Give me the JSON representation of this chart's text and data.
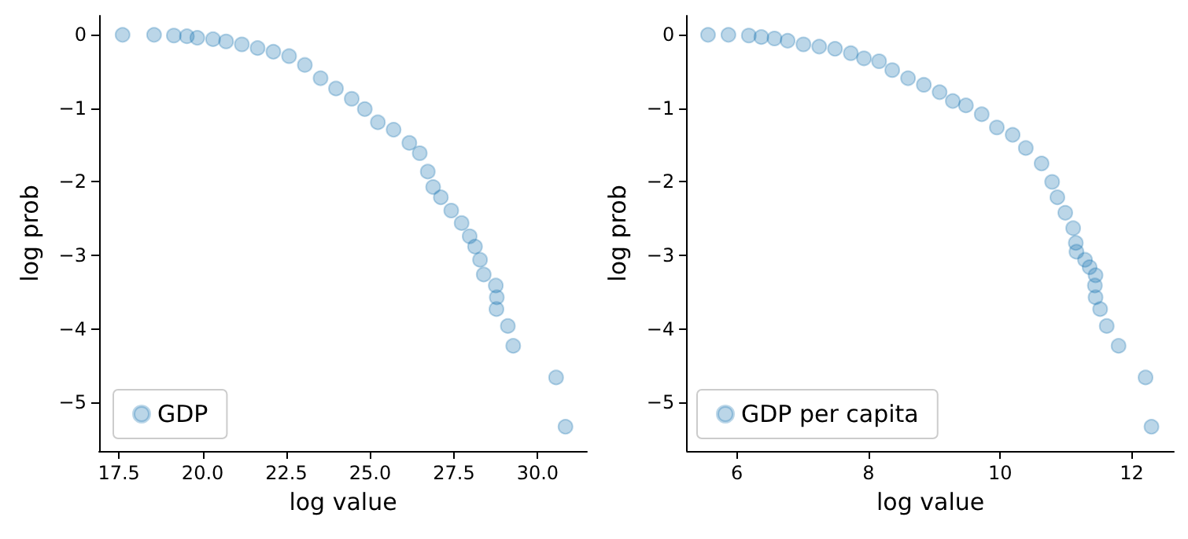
{
  "chart_data": [
    {
      "type": "scatter",
      "xlabel": "log value",
      "ylabel": "log prob",
      "legend": "bottom left",
      "grid": false,
      "marker": "circle",
      "xlim": [
        16.91,
        31.47
      ],
      "ylim": [
        -5.66,
        0.26
      ],
      "xticks": [
        17.5,
        {
          "value": 20,
          "label": "20.0"
        },
        22.5,
        {
          "value": 25,
          "label": "25.0"
        },
        27.5,
        {
          "value": 30,
          "label": "30.0"
        }
      ],
      "yticks": [
        {
          "value": -5,
          "label": "−5"
        },
        {
          "value": -4,
          "label": "−4"
        },
        {
          "value": -3,
          "label": "−3"
        },
        {
          "value": -2,
          "label": "−2"
        },
        {
          "value": -1,
          "label": "−1"
        },
        0
      ],
      "series": [
        {
          "name": "GDP",
          "color": "#1f77b4",
          "x": [
            17.61,
            18.55,
            19.14,
            19.53,
            19.84,
            20.31,
            20.7,
            21.17,
            21.64,
            22.11,
            22.58,
            23.05,
            23.52,
            23.98,
            24.45,
            24.84,
            25.23,
            25.7,
            26.17,
            26.48,
            26.72,
            26.88,
            27.11,
            27.42,
            27.73,
            27.97,
            28.13,
            28.28,
            28.39,
            28.75,
            28.78,
            28.77,
            29.11,
            29.27,
            30.55,
            30.83
          ],
          "values": [
            0,
            0,
            -0.01,
            -0.02,
            -0.04,
            -0.06,
            -0.09,
            -0.13,
            -0.18,
            -0.23,
            -0.29,
            -0.41,
            -0.59,
            -0.73,
            -0.87,
            -1.01,
            -1.19,
            -1.29,
            -1.47,
            -1.61,
            -1.86,
            -2.07,
            -2.21,
            -2.39,
            -2.56,
            -2.74,
            -2.88,
            -3.06,
            -3.26,
            -3.41,
            -3.57,
            -3.73,
            -3.96,
            -4.23,
            -4.66,
            -5.33
          ]
        }
      ]
    },
    {
      "type": "scatter",
      "xlabel": "log value",
      "ylabel": "log prob",
      "legend": "bottom left",
      "grid": false,
      "marker": "circle",
      "xlim": [
        5.24,
        12.64
      ],
      "ylim": [
        -5.66,
        0.26
      ],
      "xticks": [
        6,
        8,
        10,
        12
      ],
      "yticks": [
        {
          "value": -5,
          "label": "−5"
        },
        {
          "value": -4,
          "label": "−4"
        },
        {
          "value": -3,
          "label": "−3"
        },
        {
          "value": -2,
          "label": "−2"
        },
        {
          "value": -1,
          "label": "−1"
        },
        0
      ],
      "series": [
        {
          "name": "GDP per capita",
          "color": "#1f77b4",
          "x": [
            5.56,
            5.87,
            6.18,
            6.37,
            6.57,
            6.77,
            7.01,
            7.25,
            7.49,
            7.73,
            7.93,
            8.16,
            8.36,
            8.6,
            8.84,
            9.08,
            9.28,
            9.48,
            9.72,
            9.95,
            10.19,
            10.39,
            10.63,
            10.79,
            10.87,
            10.99,
            11.11,
            11.15,
            11.16,
            11.29,
            11.36,
            11.45,
            11.44,
            11.45,
            11.52,
            11.62,
            11.8,
            12.21,
            12.3
          ],
          "values": [
            0,
            0,
            -0.01,
            -0.03,
            -0.05,
            -0.08,
            -0.13,
            -0.16,
            -0.19,
            -0.25,
            -0.32,
            -0.36,
            -0.48,
            -0.59,
            -0.68,
            -0.78,
            -0.9,
            -0.96,
            -1.08,
            -1.26,
            -1.36,
            -1.54,
            -1.75,
            -2.0,
            -2.21,
            -2.42,
            -2.63,
            -2.83,
            -2.95,
            -3.06,
            -3.16,
            -3.27,
            -3.41,
            -3.57,
            -3.73,
            -3.96,
            -4.23,
            -4.66,
            -5.33
          ]
        }
      ]
    }
  ]
}
